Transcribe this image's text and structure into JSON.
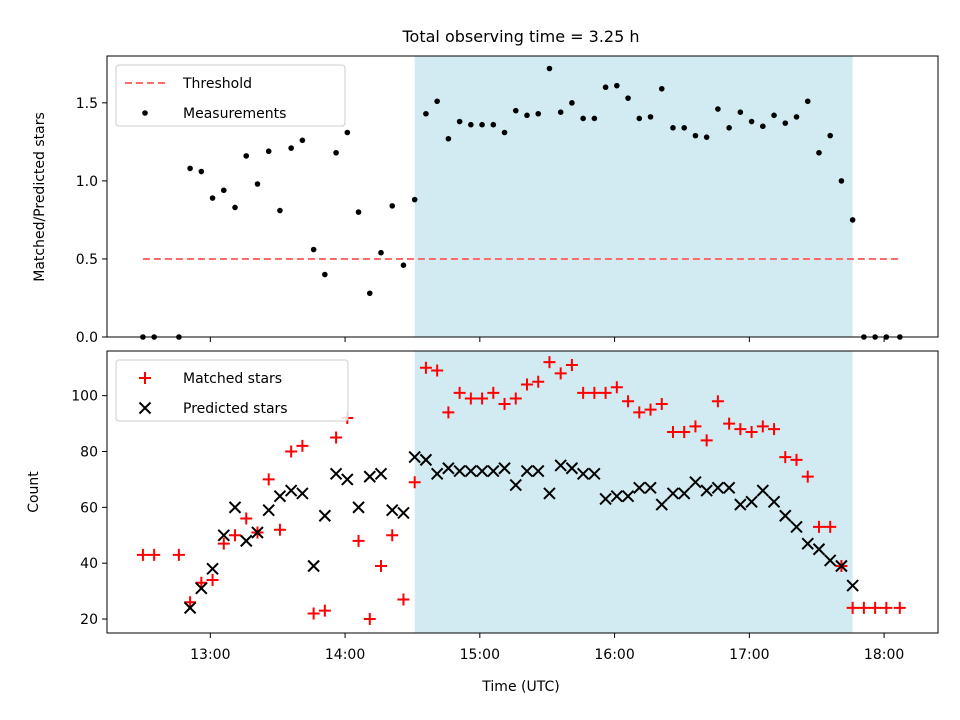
{
  "chart_data": [
    {
      "type": "scatter",
      "title": "Total observing time = 3.25 h",
      "xlabel": "",
      "ylabel": "Matched/Predicted stars",
      "xlim": [
        "12:14",
        "18:24"
      ],
      "ylim": [
        0,
        1.8
      ],
      "yticks": [
        "0.0",
        "0.5",
        "1.0",
        "1.5"
      ],
      "highlight_span": {
        "start": "14:31",
        "end": "17:46",
        "color": "#add8e6"
      },
      "legend": {
        "placement": "top-left",
        "entries": [
          "Threshold",
          "Measurements"
        ]
      },
      "series": [
        {
          "name": "Threshold",
          "kind": "dashed-line",
          "color": "#ff6b6b",
          "x": [
            "12:30",
            "18:07"
          ],
          "y": [
            0.5,
            0.5
          ]
        },
        {
          "name": "Measurements",
          "kind": "dots",
          "color": "#000000",
          "x": [
            "12:30",
            "12:35",
            "12:46",
            "12:51",
            "12:56",
            "13:01",
            "13:06",
            "13:11",
            "13:16",
            "13:21",
            "13:26",
            "13:31",
            "13:36",
            "13:41",
            "13:46",
            "13:51",
            "13:56",
            "14:01",
            "14:06",
            "14:11",
            "14:16",
            "14:21",
            "14:26",
            "14:31",
            "14:36",
            "14:41",
            "14:46",
            "14:51",
            "14:56",
            "15:01",
            "15:06",
            "15:11",
            "15:16",
            "15:21",
            "15:26",
            "15:31",
            "15:36",
            "15:41",
            "15:46",
            "15:51",
            "15:56",
            "16:01",
            "16:06",
            "16:11",
            "16:16",
            "16:21",
            "16:26",
            "16:31",
            "16:36",
            "16:41",
            "16:46",
            "16:51",
            "16:56",
            "17:01",
            "17:06",
            "17:11",
            "17:16",
            "17:21",
            "17:26",
            "17:31",
            "17:36",
            "17:41",
            "17:46",
            "17:51",
            "17:56",
            "18:01",
            "18:07"
          ],
          "y": [
            0.0,
            0.0,
            0.0,
            1.08,
            1.06,
            0.89,
            0.94,
            0.83,
            1.16,
            0.98,
            1.19,
            0.81,
            1.21,
            1.26,
            0.56,
            0.4,
            1.18,
            1.31,
            0.8,
            0.28,
            0.54,
            0.84,
            0.46,
            0.88,
            1.43,
            1.51,
            1.27,
            1.38,
            1.36,
            1.36,
            1.36,
            1.31,
            1.45,
            1.42,
            1.43,
            1.72,
            1.44,
            1.5,
            1.4,
            1.4,
            1.6,
            1.61,
            1.53,
            1.4,
            1.41,
            1.59,
            1.34,
            1.34,
            1.29,
            1.28,
            1.46,
            1.34,
            1.44,
            1.38,
            1.35,
            1.42,
            1.37,
            1.41,
            1.51,
            1.18,
            1.29,
            1.0,
            0.75,
            0.0,
            0.0,
            0.0,
            0.0
          ]
        }
      ]
    },
    {
      "type": "scatter",
      "title": "",
      "xlabel": "Time (UTC)",
      "ylabel": "Count",
      "xlim": [
        "12:14",
        "18:24"
      ],
      "ylim": [
        15,
        116
      ],
      "yticks": [
        "20",
        "40",
        "60",
        "80",
        "100"
      ],
      "xticks": [
        "13:00",
        "14:00",
        "15:00",
        "16:00",
        "17:00",
        "18:00"
      ],
      "highlight_span": {
        "start": "14:31",
        "end": "17:46",
        "color": "#add8e6"
      },
      "legend": {
        "placement": "top-left",
        "entries": [
          "Matched stars",
          "Predicted stars"
        ]
      },
      "series": [
        {
          "name": "Matched stars",
          "kind": "plus",
          "color": "#ff0000",
          "x": [
            "12:30",
            "12:35",
            "12:46",
            "12:51",
            "12:56",
            "13:01",
            "13:06",
            "13:11",
            "13:16",
            "13:21",
            "13:26",
            "13:31",
            "13:36",
            "13:41",
            "13:46",
            "13:51",
            "13:56",
            "14:01",
            "14:06",
            "14:11",
            "14:16",
            "14:21",
            "14:26",
            "14:31",
            "14:36",
            "14:41",
            "14:46",
            "14:51",
            "14:56",
            "15:01",
            "15:06",
            "15:11",
            "15:16",
            "15:21",
            "15:26",
            "15:31",
            "15:36",
            "15:41",
            "15:46",
            "15:51",
            "15:56",
            "16:01",
            "16:06",
            "16:11",
            "16:16",
            "16:21",
            "16:26",
            "16:31",
            "16:36",
            "16:41",
            "16:46",
            "16:51",
            "16:56",
            "17:01",
            "17:06",
            "17:11",
            "17:16",
            "17:21",
            "17:26",
            "17:31",
            "17:36",
            "17:41",
            "17:46",
            "17:51",
            "17:56",
            "18:01",
            "18:07"
          ],
          "y": [
            43,
            43,
            43,
            26,
            33,
            34,
            47,
            50,
            56,
            51,
            70,
            52,
            80,
            82,
            22,
            23,
            85,
            92,
            48,
            20,
            39,
            50,
            27,
            69,
            110,
            109,
            94,
            101,
            99,
            99,
            101,
            97,
            99,
            104,
            105,
            112,
            108,
            111,
            101,
            101,
            101,
            103,
            98,
            94,
            95,
            97,
            87,
            87,
            89,
            84,
            98,
            90,
            88,
            87,
            89,
            88,
            78,
            77,
            71,
            53,
            53,
            39,
            24,
            24,
            24,
            24,
            24
          ]
        },
        {
          "name": "Predicted stars",
          "kind": "x",
          "color": "#000000",
          "x": [
            "12:51",
            "12:56",
            "13:01",
            "13:06",
            "13:11",
            "13:16",
            "13:21",
            "13:26",
            "13:31",
            "13:36",
            "13:41",
            "13:46",
            "13:51",
            "13:56",
            "14:01",
            "14:06",
            "14:11",
            "14:16",
            "14:21",
            "14:26",
            "14:31",
            "14:36",
            "14:41",
            "14:46",
            "14:51",
            "14:56",
            "15:01",
            "15:06",
            "15:11",
            "15:16",
            "15:21",
            "15:26",
            "15:31",
            "15:36",
            "15:41",
            "15:46",
            "15:51",
            "15:56",
            "16:01",
            "16:06",
            "16:11",
            "16:16",
            "16:21",
            "16:26",
            "16:31",
            "16:36",
            "16:41",
            "16:46",
            "16:51",
            "16:56",
            "17:01",
            "17:06",
            "17:11",
            "17:16",
            "17:21",
            "17:26",
            "17:31",
            "17:36",
            "17:41",
            "17:46"
          ],
          "y": [
            24,
            31,
            38,
            50,
            60,
            48,
            51,
            59,
            64,
            66,
            65,
            39,
            57,
            72,
            70,
            60,
            71,
            72,
            59,
            58,
            78,
            77,
            72,
            74,
            73,
            73,
            73,
            73,
            74,
            68,
            73,
            73,
            65,
            75,
            74,
            72,
            72,
            63,
            64,
            64,
            67,
            67,
            61,
            65,
            65,
            69,
            66,
            67,
            67,
            61,
            62,
            66,
            62,
            57,
            53,
            47,
            45,
            41,
            39,
            32
          ]
        }
      ]
    }
  ]
}
